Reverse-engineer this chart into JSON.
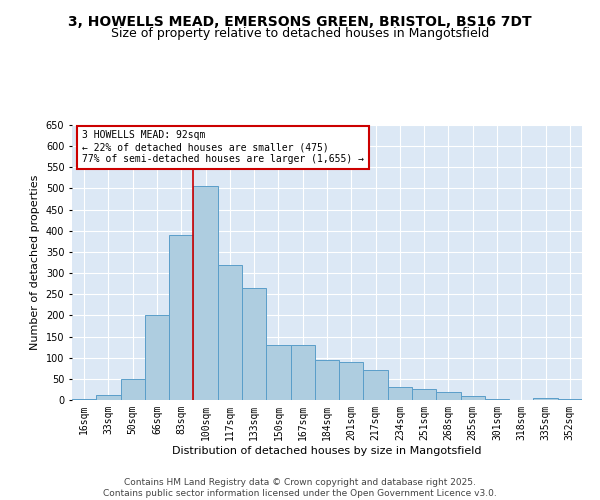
{
  "title1": "3, HOWELLS MEAD, EMERSONS GREEN, BRISTOL, BS16 7DT",
  "title2": "Size of property relative to detached houses in Mangotsfield",
  "xlabel": "Distribution of detached houses by size in Mangotsfield",
  "ylabel": "Number of detached properties",
  "bin_labels": [
    "16sqm",
    "33sqm",
    "50sqm",
    "66sqm",
    "83sqm",
    "100sqm",
    "117sqm",
    "133sqm",
    "150sqm",
    "167sqm",
    "184sqm",
    "201sqm",
    "217sqm",
    "234sqm",
    "251sqm",
    "268sqm",
    "285sqm",
    "301sqm",
    "318sqm",
    "335sqm",
    "352sqm"
  ],
  "bar_values": [
    2,
    12,
    50,
    200,
    390,
    505,
    320,
    265,
    130,
    130,
    95,
    90,
    70,
    30,
    25,
    20,
    10,
    2,
    0,
    5,
    2
  ],
  "bar_color": "#aecde0",
  "bar_edge_color": "#5a9ec9",
  "vline_color": "#cc0000",
  "vline_pos": 4.5,
  "annotation_text": "3 HOWELLS MEAD: 92sqm\n← 22% of detached houses are smaller (475)\n77% of semi-detached houses are larger (1,655) →",
  "annotation_box_color": "#ffffff",
  "annotation_box_edge": "#cc0000",
  "ylim": [
    0,
    650
  ],
  "yticks": [
    0,
    50,
    100,
    150,
    200,
    250,
    300,
    350,
    400,
    450,
    500,
    550,
    600,
    650
  ],
  "bg_color": "#dce8f5",
  "footer_line1": "Contains HM Land Registry data © Crown copyright and database right 2025.",
  "footer_line2": "Contains public sector information licensed under the Open Government Licence v3.0.",
  "title1_fontsize": 10,
  "title2_fontsize": 9,
  "tick_fontsize": 7,
  "ylabel_fontsize": 8,
  "xlabel_fontsize": 8,
  "annotation_fontsize": 7,
  "footer_fontsize": 6.5
}
